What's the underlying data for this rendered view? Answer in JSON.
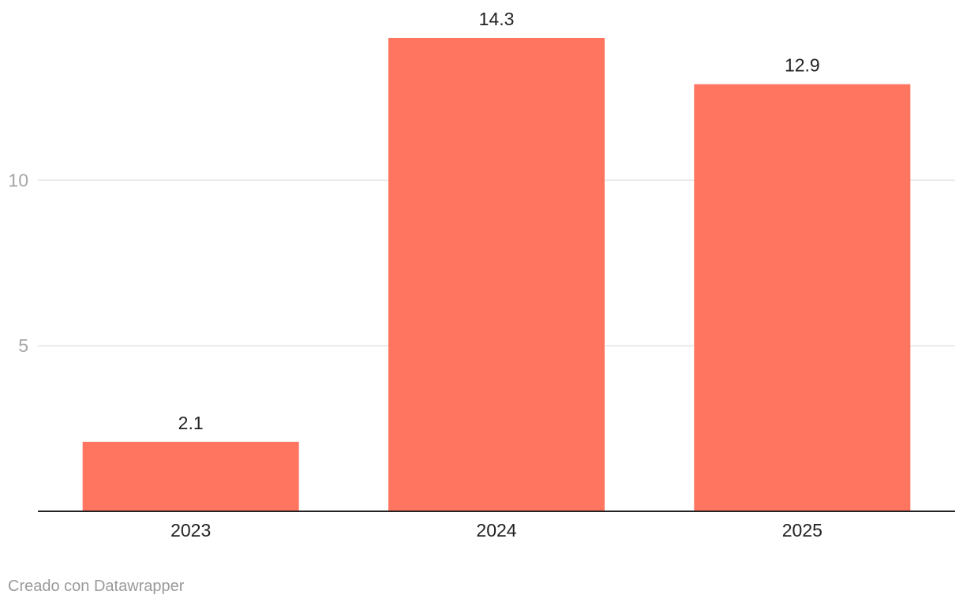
{
  "chart_data": {
    "type": "bar",
    "title": "",
    "xlabel": "",
    "ylabel": "",
    "categories": [
      "2023",
      "2024",
      "2025"
    ],
    "values": [
      2.1,
      14.3,
      12.9
    ],
    "value_labels": [
      "2.1",
      "14.3",
      "12.9"
    ],
    "ylim": [
      0,
      14.3
    ],
    "yticks": [
      5,
      10
    ],
    "ytick_labels": [
      "5",
      "10"
    ],
    "grid": true,
    "bar_color": "#ff7560",
    "legend": "none"
  },
  "footer": {
    "credit": "Creado con Datawrapper"
  }
}
